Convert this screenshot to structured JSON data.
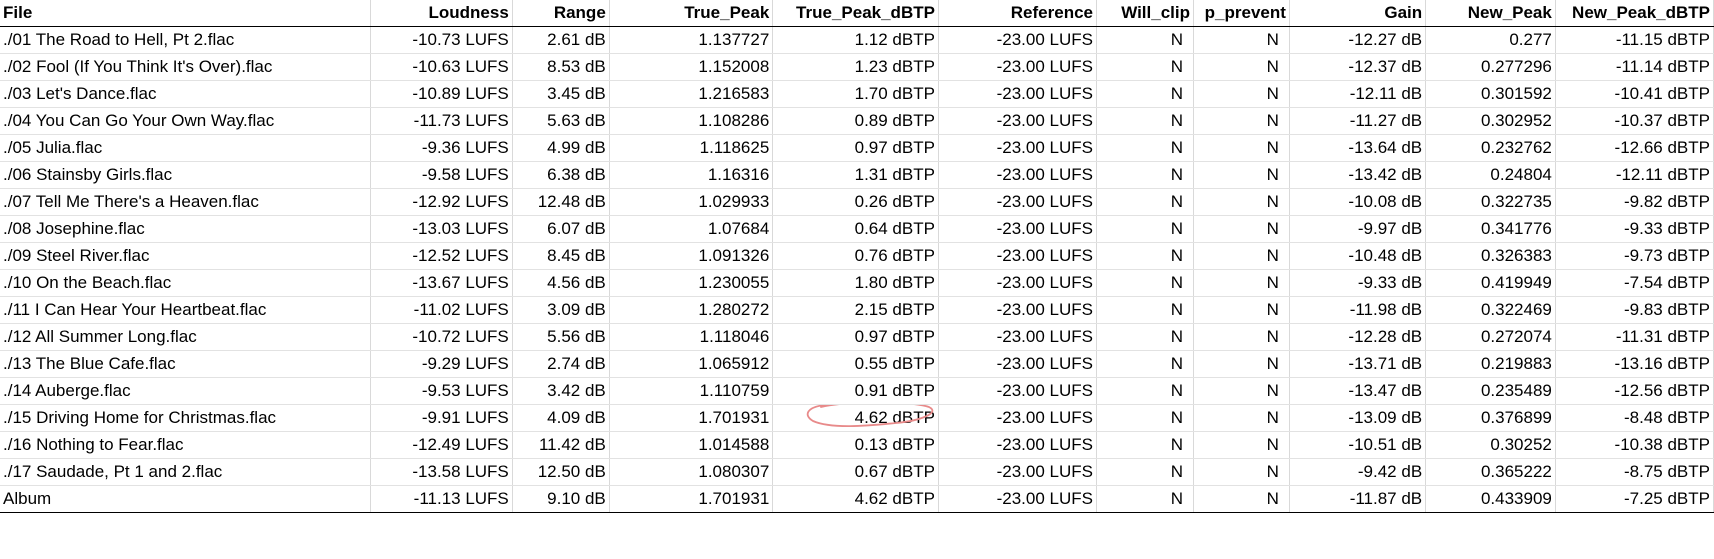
{
  "sheet": {
    "columns": [
      {
        "key": "file",
        "label": "File"
      },
      {
        "key": "loudness",
        "label": "Loudness"
      },
      {
        "key": "range",
        "label": "Range"
      },
      {
        "key": "true_peak",
        "label": "True_Peak"
      },
      {
        "key": "true_peak_dbtp",
        "label": "True_Peak_dBTP"
      },
      {
        "key": "reference",
        "label": "Reference"
      },
      {
        "key": "will_clip",
        "label": "Will_clip"
      },
      {
        "key": "clip_prevent",
        "label": "p_prevent"
      },
      {
        "key": "gain",
        "label": "Gain"
      },
      {
        "key": "new_peak",
        "label": "New_Peak"
      },
      {
        "key": "new_peak_dbtp",
        "label": "New_Peak_dBTP"
      }
    ],
    "rows": [
      [
        "./01 The Road to Hell, Pt 2.flac",
        "-10.73 LUFS",
        "2.61 dB",
        "1.137727",
        "1.12 dBTP",
        "-23.00 LUFS",
        "N",
        "N",
        "-12.27 dB",
        "0.277",
        "-11.15 dBTP"
      ],
      [
        "./02 Fool (If You Think It's Over).flac",
        "-10.63 LUFS",
        "8.53 dB",
        "1.152008",
        "1.23 dBTP",
        "-23.00 LUFS",
        "N",
        "N",
        "-12.37 dB",
        "0.277296",
        "-11.14 dBTP"
      ],
      [
        "./03 Let's Dance.flac",
        "-10.89 LUFS",
        "3.45 dB",
        "1.216583",
        "1.70 dBTP",
        "-23.00 LUFS",
        "N",
        "N",
        "-12.11 dB",
        "0.301592",
        "-10.41 dBTP"
      ],
      [
        "./04 You Can Go Your Own Way.flac",
        "-11.73 LUFS",
        "5.63 dB",
        "1.108286",
        "0.89 dBTP",
        "-23.00 LUFS",
        "N",
        "N",
        "-11.27 dB",
        "0.302952",
        "-10.37 dBTP"
      ],
      [
        "./05 Julia.flac",
        "-9.36 LUFS",
        "4.99 dB",
        "1.118625",
        "0.97 dBTP",
        "-23.00 LUFS",
        "N",
        "N",
        "-13.64 dB",
        "0.232762",
        "-12.66 dBTP"
      ],
      [
        "./06 Stainsby Girls.flac",
        "-9.58 LUFS",
        "6.38 dB",
        "1.16316",
        "1.31 dBTP",
        "-23.00 LUFS",
        "N",
        "N",
        "-13.42 dB",
        "0.24804",
        "-12.11 dBTP"
      ],
      [
        "./07 Tell Me There's a Heaven.flac",
        "-12.92 LUFS",
        "12.48 dB",
        "1.029933",
        "0.26 dBTP",
        "-23.00 LUFS",
        "N",
        "N",
        "-10.08 dB",
        "0.322735",
        "-9.82 dBTP"
      ],
      [
        "./08 Josephine.flac",
        "-13.03 LUFS",
        "6.07 dB",
        "1.07684",
        "0.64 dBTP",
        "-23.00 LUFS",
        "N",
        "N",
        "-9.97 dB",
        "0.341776",
        "-9.33 dBTP"
      ],
      [
        "./09 Steel River.flac",
        "-12.52 LUFS",
        "8.45 dB",
        "1.091326",
        "0.76 dBTP",
        "-23.00 LUFS",
        "N",
        "N",
        "-10.48 dB",
        "0.326383",
        "-9.73 dBTP"
      ],
      [
        "./10 On the Beach.flac",
        "-13.67 LUFS",
        "4.56 dB",
        "1.230055",
        "1.80 dBTP",
        "-23.00 LUFS",
        "N",
        "N",
        "-9.33 dB",
        "0.419949",
        "-7.54 dBTP"
      ],
      [
        "./11 I Can Hear Your Heartbeat.flac",
        "-11.02 LUFS",
        "3.09 dB",
        "1.280272",
        "2.15 dBTP",
        "-23.00 LUFS",
        "N",
        "N",
        "-11.98 dB",
        "0.322469",
        "-9.83 dBTP"
      ],
      [
        "./12 All Summer Long.flac",
        "-10.72 LUFS",
        "5.56 dB",
        "1.118046",
        "0.97 dBTP",
        "-23.00 LUFS",
        "N",
        "N",
        "-12.28 dB",
        "0.272074",
        "-11.31 dBTP"
      ],
      [
        "./13 The Blue Cafe.flac",
        "-9.29 LUFS",
        "2.74 dB",
        "1.065912",
        "0.55 dBTP",
        "-23.00 LUFS",
        "N",
        "N",
        "-13.71 dB",
        "0.219883",
        "-13.16 dBTP"
      ],
      [
        "./14 Auberge.flac",
        "-9.53 LUFS",
        "3.42 dB",
        "1.110759",
        "0.91 dBTP",
        "-23.00 LUFS",
        "N",
        "N",
        "-13.47 dB",
        "0.235489",
        "-12.56 dBTP"
      ],
      [
        "./15 Driving Home for Christmas.flac",
        "-9.91 LUFS",
        "4.09 dB",
        "1.701931",
        "4.62 dBTP",
        "-23.00 LUFS",
        "N",
        "N",
        "-13.09 dB",
        "0.376899",
        "-8.48 dBTP"
      ],
      [
        "./16 Nothing to Fear.flac",
        "-12.49 LUFS",
        "11.42 dB",
        "1.014588",
        "0.13 dBTP",
        "-23.00 LUFS",
        "N",
        "N",
        "-10.51 dB",
        "0.30252",
        "-10.38 dBTP"
      ],
      [
        "./17 Saudade, Pt 1 and 2.flac",
        "-13.58 LUFS",
        "12.50 dB",
        "1.080307",
        "0.67 dBTP",
        "-23.00 LUFS",
        "N",
        "N",
        "-9.42 dB",
        "0.365222",
        "-8.75 dBTP"
      ]
    ],
    "album_row": [
      "Album",
      "-11.13 LUFS",
      "9.10 dB",
      "1.701931",
      "4.62 dBTP",
      "-23.00 LUFS",
      "N",
      "N",
      "-11.87 dB",
      "0.433909",
      "-7.25 dBTP"
    ],
    "highlight": {
      "row": 14,
      "col": 4,
      "color": "#e88a8a"
    }
  }
}
